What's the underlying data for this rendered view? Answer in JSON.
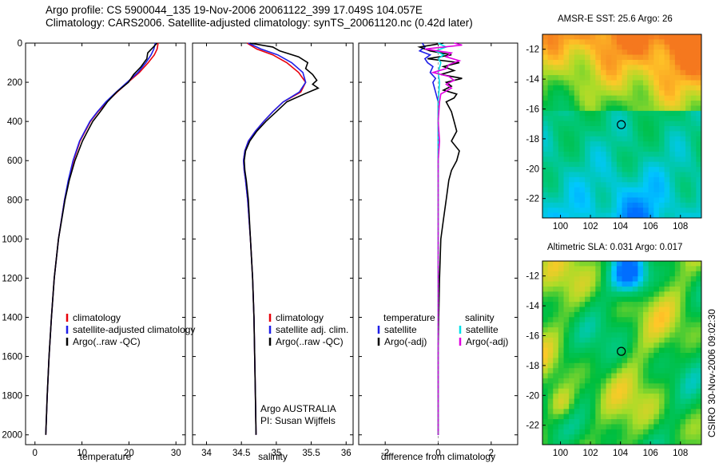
{
  "header": {
    "line1": "Argo profile: CS 5900044_135 19-Nov-2006 20061122_399 17.049S 104.057E",
    "line2": "Climatology: CARS2006. Satellite-adjusted climatology: synTS_20061120.nc (0.42d later)"
  },
  "side_label": "CSIRO 30-Nov-2006 09:02:30",
  "colors": {
    "climatology": "#e8000b",
    "satellite": "#1f1fe8",
    "argo": "#000000",
    "magenta": "#e000e0",
    "cyan": "#00e0e8"
  },
  "chart_data": [
    {
      "type": "line",
      "name": "temperature-panel",
      "xlabel": "temperature",
      "xlim": [
        -2,
        32
      ],
      "ylim": [
        0,
        2050
      ],
      "xticks": [
        0,
        10,
        20,
        30
      ],
      "yticks": [
        0,
        200,
        400,
        600,
        800,
        1000,
        1200,
        1400,
        1600,
        1800,
        2000
      ],
      "legend": [
        "climatology",
        "satellite-adjusted climatology",
        "Argo(..raw -QC)"
      ],
      "series": [
        {
          "name": "climatology",
          "color": "climatology",
          "depth": [
            0,
            30,
            60,
            100,
            150,
            200,
            250,
            300,
            350,
            400,
            500,
            600,
            700,
            800,
            1000,
            1200,
            1400,
            1600,
            1800,
            2000
          ],
          "values": [
            26.2,
            26.0,
            25.4,
            24.1,
            22.2,
            19.8,
            17.5,
            15.3,
            13.4,
            11.8,
            9.6,
            8.2,
            7.2,
            6.3,
            5.0,
            4.1,
            3.5,
            3.0,
            2.6,
            2.3
          ]
        },
        {
          "name": "satellite-adjusted climatology",
          "color": "satellite",
          "depth": [
            0,
            30,
            60,
            100,
            150,
            200,
            250,
            300,
            350,
            400,
            500,
            600,
            700,
            800,
            1000,
            1200,
            1400,
            1600,
            1800,
            2000
          ],
          "values": [
            25.6,
            25.3,
            24.7,
            23.6,
            21.9,
            19.6,
            17.3,
            15.1,
            13.3,
            11.7,
            9.5,
            8.1,
            7.1,
            6.3,
            5.0,
            4.1,
            3.5,
            3.0,
            2.6,
            2.3
          ]
        },
        {
          "name": "Argo(..raw -QC)",
          "color": "argo",
          "depth": [
            0,
            20,
            50,
            80,
            120,
            160,
            200,
            250,
            300,
            350,
            400,
            450,
            500,
            600,
            700,
            800,
            1000,
            1200,
            1400,
            1600,
            1800,
            2000
          ],
          "values": [
            26.0,
            25.2,
            24.0,
            23.8,
            22.6,
            21.0,
            19.9,
            17.4,
            15.4,
            13.9,
            12.3,
            11.2,
            10.1,
            8.5,
            7.3,
            6.4,
            5.0,
            4.1,
            3.5,
            3.0,
            2.6,
            2.3
          ]
        }
      ]
    },
    {
      "type": "line",
      "name": "salinity-panel",
      "xlabel": "salinity",
      "xlim": [
        33.8,
        36.1
      ],
      "ylim": [
        0,
        2050
      ],
      "xticks": [
        34,
        34.5,
        35,
        35.5,
        36
      ],
      "xticklabels": [
        "34",
        "34.5",
        "35",
        "35.5",
        "36"
      ],
      "legend": [
        "climatology",
        "satellite adj. clim.",
        "Argo(..raw -QC)"
      ],
      "annotation": [
        "Argo AUSTRALIA",
        "PI: Susan Wijffels"
      ],
      "series": [
        {
          "name": "climatology",
          "color": "climatology",
          "depth": [
            0,
            30,
            60,
            100,
            150,
            200,
            250,
            300,
            350,
            400,
            450,
            500,
            550,
            600,
            650,
            700,
            800,
            1000,
            1200,
            1400,
            1600,
            1800,
            2000
          ],
          "values": [
            34.58,
            34.72,
            34.95,
            35.15,
            35.32,
            35.42,
            35.35,
            35.1,
            34.95,
            34.82,
            34.7,
            34.6,
            34.55,
            34.53,
            34.54,
            34.56,
            34.59,
            34.63,
            34.66,
            34.68,
            34.69,
            34.7,
            34.71
          ]
        },
        {
          "name": "satellite adj. clim.",
          "color": "satellite",
          "depth": [
            0,
            30,
            60,
            100,
            150,
            200,
            250,
            300,
            350,
            400,
            450,
            500,
            550,
            600,
            650,
            700,
            800,
            1000,
            1200,
            1400,
            1600,
            1800,
            2000
          ],
          "values": [
            34.6,
            34.78,
            35.02,
            35.22,
            35.38,
            35.42,
            35.33,
            35.1,
            34.95,
            34.82,
            34.7,
            34.6,
            34.55,
            34.53,
            34.54,
            34.56,
            34.59,
            34.63,
            34.66,
            34.68,
            34.69,
            34.7,
            34.71
          ]
        },
        {
          "name": "Argo(..raw -QC)",
          "color": "argo",
          "depth": [
            0,
            20,
            40,
            70,
            100,
            130,
            160,
            190,
            210,
            230,
            260,
            300,
            350,
            400,
            450,
            500,
            550,
            600,
            650,
            700,
            800,
            1000,
            1200,
            1400,
            1600,
            1800,
            2000
          ],
          "values": [
            34.62,
            34.95,
            35.05,
            35.32,
            35.45,
            35.42,
            35.52,
            35.58,
            35.52,
            35.6,
            35.4,
            35.15,
            35.0,
            34.85,
            34.72,
            34.62,
            34.56,
            34.54,
            34.55,
            34.57,
            34.6,
            34.63,
            34.66,
            34.68,
            34.69,
            34.7,
            34.71
          ]
        }
      ]
    },
    {
      "type": "line",
      "name": "difference-panel",
      "xlabel": "difference from climatology",
      "xlim": [
        -3,
        3
      ],
      "ylim": [
        0,
        2050
      ],
      "xticks": [
        -2,
        0,
        2
      ],
      "legend_left": {
        "title": "temperature",
        "items": [
          "satellite",
          "Argo(-adj)"
        ]
      },
      "legend_right": {
        "title": "salinity",
        "items": [
          "satellite",
          "Argo(-adj)"
        ]
      },
      "series": [
        {
          "name": "temperature satellite",
          "color": "satellite",
          "depth": [
            0,
            20,
            40,
            60,
            80,
            100,
            120,
            150,
            180,
            200,
            250,
            300,
            400,
            600,
            800,
            1000,
            1500,
            2000
          ],
          "values": [
            -0.6,
            -0.5,
            -0.7,
            -0.3,
            -0.5,
            -0.4,
            -0.2,
            -0.3,
            -0.1,
            -0.2,
            -0.1,
            0,
            0,
            0,
            0,
            0,
            0,
            0
          ]
        },
        {
          "name": "temperature Argo(-adj)",
          "color": "argo",
          "depth": [
            0,
            20,
            40,
            60,
            80,
            100,
            120,
            140,
            160,
            180,
            200,
            220,
            240,
            260,
            280,
            300,
            350,
            400,
            450,
            500,
            550,
            600,
            650,
            700,
            800,
            900,
            1000,
            1200,
            1400,
            1600,
            1800,
            2000
          ],
          "values": [
            0.2,
            -0.7,
            -0.3,
            0.5,
            -0.4,
            0.8,
            0.2,
            0.6,
            0.1,
            0.9,
            0.3,
            0.5,
            0.2,
            0.7,
            0.6,
            0.3,
            0.5,
            0.6,
            0.7,
            0.5,
            0.8,
            0.7,
            0.5,
            0.4,
            0.3,
            0.2,
            0.1,
            0.05,
            0.02,
            0,
            0,
            0
          ]
        },
        {
          "name": "salinity satellite",
          "color": "cyan",
          "depth": [
            0,
            20,
            40,
            60,
            80,
            100,
            150,
            200,
            300,
            400,
            600,
            800,
            1000,
            1500,
            2000
          ],
          "values": [
            0,
            0.3,
            -0.1,
            0.2,
            0,
            0.1,
            0,
            0.05,
            0,
            0,
            0,
            0,
            0,
            0,
            0
          ]
        },
        {
          "name": "salinity Argo(-adj)",
          "color": "magenta",
          "depth": [
            0,
            10,
            20,
            30,
            50,
            70,
            90,
            110,
            130,
            150,
            170,
            190,
            210,
            230,
            260,
            300,
            400,
            500,
            600,
            800,
            1000,
            2000
          ],
          "values": [
            0.6,
            0.9,
            0.2,
            -0.5,
            0.5,
            0.3,
            0.8,
            0.4,
            0.3,
            -0.2,
            0.4,
            0.6,
            0.3,
            0.5,
            0.1,
            0.05,
            0,
            0.05,
            0,
            0,
            0,
            0
          ]
        }
      ]
    },
    {
      "type": "heatmap",
      "name": "sst-map",
      "title": "AMSR-E SST: 25.6 Argo: 26",
      "xlim": [
        98.8,
        109.4
      ],
      "ylim": [
        -23.3,
        -11
      ],
      "xticks": [
        100,
        102,
        104,
        106,
        108
      ],
      "yticks": [
        -12,
        -14,
        -16,
        -18,
        -20,
        -22
      ],
      "marker": {
        "lon": 104.057,
        "lat": -17.049
      }
    },
    {
      "type": "heatmap",
      "name": "sla-map",
      "title": "Altimetric SLA: 0.031 Argo: 0.017",
      "xlim": [
        98.8,
        109.4
      ],
      "ylim": [
        -23.3,
        -11
      ],
      "xticks": [
        100,
        102,
        104,
        106,
        108
      ],
      "yticks": [
        -12,
        -14,
        -16,
        -18,
        -20,
        -22
      ],
      "marker": {
        "lon": 104.057,
        "lat": -17.049
      }
    }
  ]
}
